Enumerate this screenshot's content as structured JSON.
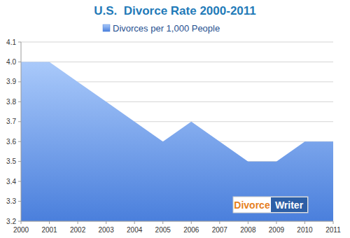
{
  "chart_data": {
    "type": "area",
    "title": "U.S.  Divorce Rate 2000-2011",
    "categories": [
      "2000",
      "2001",
      "2002",
      "2003",
      "2004",
      "2005",
      "2006",
      "2007",
      "2008",
      "2009",
      "2010",
      "2011"
    ],
    "series": [
      {
        "name": "Divorces per 1,000 People",
        "color": "#4a7fdc",
        "values": [
          4.0,
          4.0,
          3.9,
          3.8,
          3.7,
          3.6,
          3.7,
          3.6,
          3.5,
          3.5,
          3.6,
          3.6
        ]
      }
    ],
    "ylim": [
      3.2,
      4.1
    ],
    "yticks": [
      3.2,
      3.3,
      3.4,
      3.5,
      3.6,
      3.7,
      3.8,
      3.9,
      {
        "value": 4,
        "label": "4.0"
      },
      4.1
    ],
    "grid": true,
    "legend": "top",
    "annotations": [
      "Divorce",
      "Writer"
    ]
  }
}
